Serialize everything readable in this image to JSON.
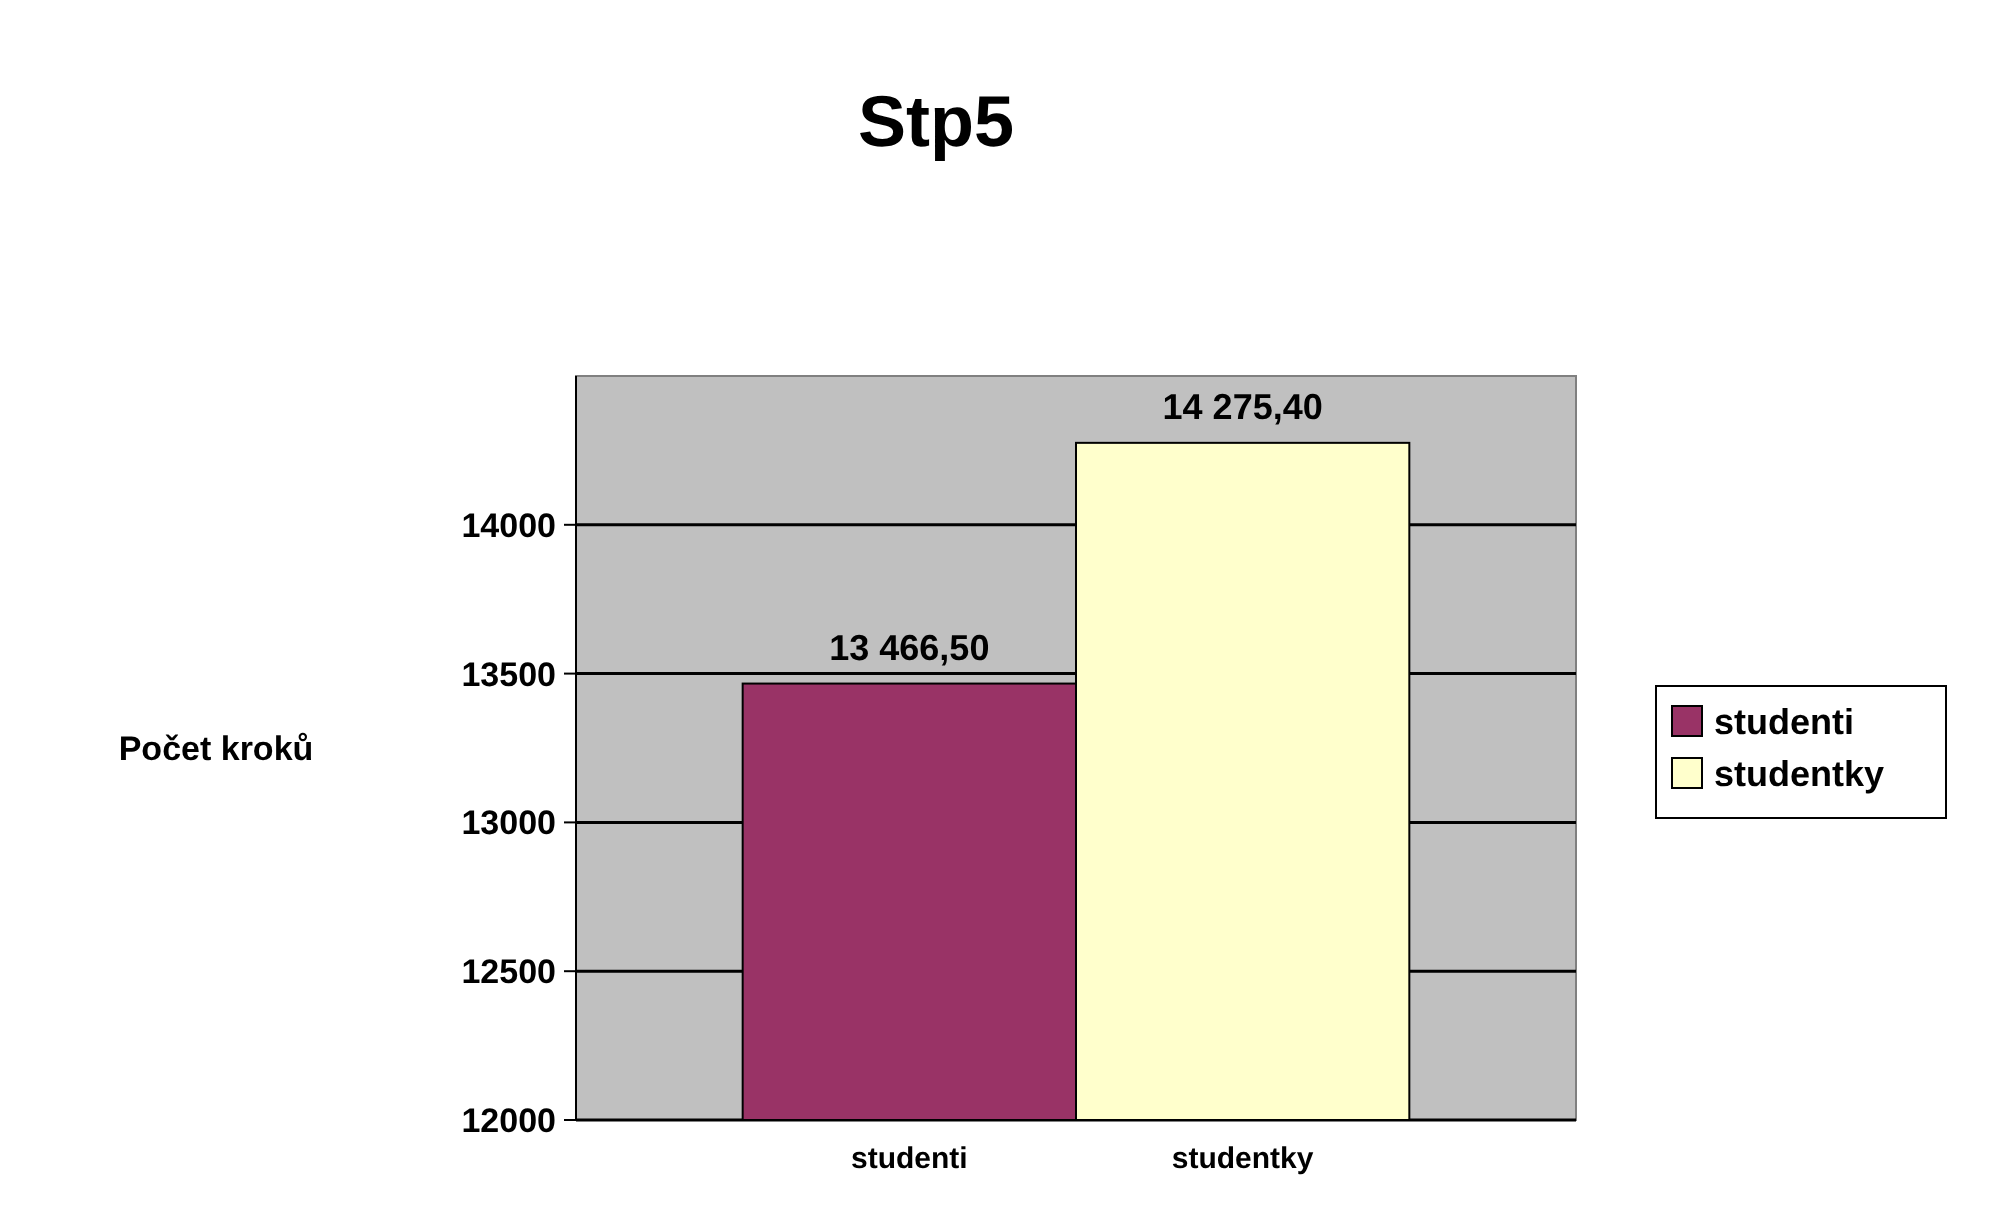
{
  "chart_data": {
    "type": "bar",
    "title": "Stp5",
    "ylabel": "Počet kroků",
    "categories": [
      "studenti",
      "studentky"
    ],
    "series": [
      {
        "name": "studenti",
        "color": "#993366",
        "values": [
          13466.5,
          null
        ],
        "value_labels": [
          "13 466,50",
          null
        ]
      },
      {
        "name": "studentky",
        "color": "#ffffcc",
        "values": [
          null,
          14275.4
        ],
        "value_labels": [
          null,
          "14 275,40"
        ]
      }
    ],
    "ylim": [
      12000,
      14500
    ],
    "yticks": [
      12000,
      12500,
      13000,
      13500,
      14000
    ],
    "grid": "y",
    "legend": "right"
  }
}
